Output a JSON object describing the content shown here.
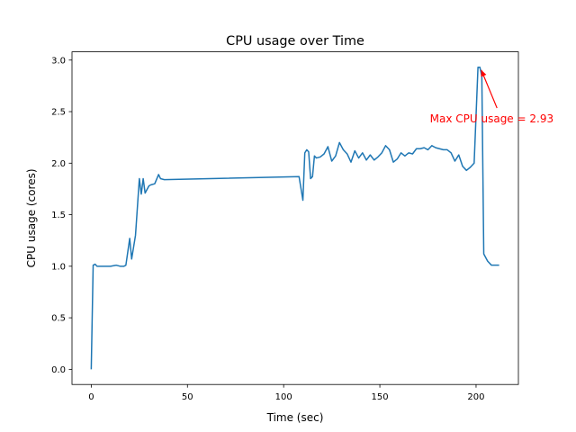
{
  "chart_data": {
    "type": "line",
    "title": "CPU usage over Time",
    "xlabel": "Time (sec)",
    "ylabel": "CPU usage (cores)",
    "xlim": [
      -10,
      222
    ],
    "ylim": [
      -0.147,
      3.08
    ],
    "xticks": [
      0,
      50,
      100,
      150,
      200
    ],
    "yticks": [
      0.0,
      0.5,
      1.0,
      1.5,
      2.0,
      2.5,
      3.0
    ],
    "xtick_labels": [
      "0",
      "50",
      "100",
      "150",
      "200"
    ],
    "ytick_labels": [
      "0.0",
      "0.5",
      "1.0",
      "1.5",
      "2.0",
      "2.5",
      "3.0"
    ],
    "grid": false,
    "series": [
      {
        "color": "#1f77b4",
        "x": [
          0,
          1,
          2,
          3,
          5,
          8,
          10,
          13,
          15,
          17,
          18,
          20,
          21,
          23,
          25,
          26,
          27,
          28,
          30,
          31,
          33,
          35,
          36,
          38,
          108,
          110,
          111,
          112,
          113,
          114,
          115,
          116,
          117,
          119,
          121,
          123,
          125,
          127,
          129,
          131,
          133,
          135,
          137,
          139,
          141,
          143,
          145,
          147,
          149,
          151,
          153,
          155,
          157,
          159,
          161,
          163,
          165,
          167,
          169,
          171,
          173,
          175,
          177,
          179,
          181,
          183,
          185,
          187,
          189,
          191,
          193,
          195,
          197,
          199,
          201,
          202,
          203,
          204,
          206,
          208,
          210,
          212
        ],
        "y": [
          0.0,
          1.01,
          1.02,
          1.0,
          1.0,
          1.0,
          1.0,
          1.01,
          1.0,
          1.0,
          1.01,
          1.27,
          1.07,
          1.3,
          1.85,
          1.7,
          1.85,
          1.71,
          1.78,
          1.79,
          1.8,
          1.89,
          1.85,
          1.84,
          1.87,
          1.64,
          2.1,
          2.13,
          2.11,
          1.85,
          1.87,
          2.07,
          2.05,
          2.06,
          2.09,
          2.16,
          2.02,
          2.07,
          2.2,
          2.13,
          2.09,
          2.01,
          2.12,
          2.05,
          2.1,
          2.03,
          2.08,
          2.03,
          2.06,
          2.1,
          2.17,
          2.13,
          2.01,
          2.04,
          2.1,
          2.07,
          2.1,
          2.09,
          2.14,
          2.14,
          2.15,
          2.13,
          2.17,
          2.15,
          2.14,
          2.13,
          2.13,
          2.1,
          2.02,
          2.08,
          1.97,
          1.93,
          1.96,
          2.0,
          2.93,
          2.93,
          2.84,
          1.12,
          1.05,
          1.01,
          1.01,
          1.01
        ]
      }
    ],
    "annotations": [
      {
        "text": "Max CPU usage = 2.93",
        "color": "#ff0000",
        "point": [
          202,
          2.93
        ],
        "text_at": [
          176,
          2.43
        ]
      }
    ]
  }
}
